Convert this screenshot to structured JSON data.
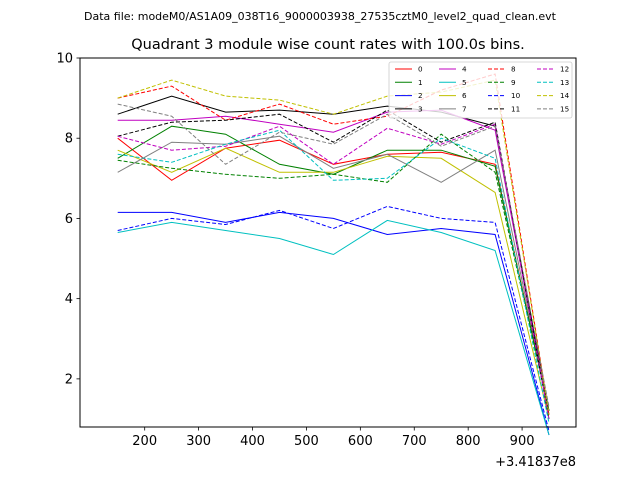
{
  "suptitle": "Data file: modeM0/AS1A09_038T16_9000003938_27535cztM0_level2_quad_clean.evt",
  "chart_data": {
    "type": "line",
    "title": "Quadrant 3 module wise count rates with 100.0s bins.",
    "xlabel": "",
    "ylabel": "",
    "x": [
      150,
      250,
      350,
      450,
      550,
      650,
      750,
      850,
      950
    ],
    "xlim": [
      80,
      1000
    ],
    "ylim": [
      0.8,
      10
    ],
    "xticks": [
      200,
      300,
      400,
      500,
      600,
      700,
      800,
      900
    ],
    "yticks": [
      2,
      4,
      6,
      8,
      10
    ],
    "x_offset_label": "+3.41837e8",
    "grid": false,
    "legend_position": "top-right",
    "series": [
      {
        "name": "0",
        "color": "#ff0000",
        "dash": "solid",
        "values": [
          8.0,
          6.95,
          7.75,
          7.95,
          7.35,
          7.6,
          7.65,
          7.35,
          1.2
        ]
      },
      {
        "name": "1",
        "color": "#008000",
        "dash": "solid",
        "values": [
          7.5,
          8.3,
          8.1,
          7.35,
          7.1,
          7.7,
          7.7,
          7.3,
          1.2
        ]
      },
      {
        "name": "2",
        "color": "#0000ff",
        "dash": "solid",
        "values": [
          6.15,
          6.15,
          5.9,
          6.15,
          6.0,
          5.6,
          5.75,
          5.6,
          0.6
        ]
      },
      {
        "name": "3",
        "color": "#000000",
        "dash": "solid",
        "values": [
          8.6,
          9.05,
          8.65,
          8.7,
          8.6,
          8.8,
          8.65,
          8.3,
          1.2
        ]
      },
      {
        "name": "4",
        "color": "#c000c0",
        "dash": "solid",
        "values": [
          8.45,
          8.45,
          8.55,
          8.35,
          8.15,
          8.65,
          8.7,
          8.2,
          1.1
        ]
      },
      {
        "name": "5",
        "color": "#00c0c0",
        "dash": "solid",
        "values": [
          5.65,
          5.9,
          5.7,
          5.5,
          5.1,
          5.95,
          5.65,
          5.2,
          0.6
        ]
      },
      {
        "name": "6",
        "color": "#c0c000",
        "dash": "solid",
        "values": [
          7.7,
          7.15,
          7.75,
          7.15,
          7.15,
          7.55,
          7.5,
          6.65,
          1.0
        ]
      },
      {
        "name": "7",
        "color": "#808080",
        "dash": "solid",
        "values": [
          7.15,
          7.9,
          7.85,
          8.05,
          7.25,
          7.6,
          6.9,
          7.7,
          1.2
        ]
      },
      {
        "name": "8",
        "color": "#ff0000",
        "dash": "dashed",
        "values": [
          9.0,
          9.3,
          8.45,
          8.85,
          8.35,
          8.55,
          9.2,
          9.6,
          1.1
        ]
      },
      {
        "name": "9",
        "color": "#008000",
        "dash": "dashed",
        "values": [
          7.45,
          7.25,
          7.1,
          7.0,
          7.1,
          6.9,
          8.1,
          7.15,
          1.2
        ]
      },
      {
        "name": "10",
        "color": "#0000ff",
        "dash": "dashed",
        "values": [
          5.7,
          6.0,
          5.85,
          6.2,
          5.75,
          6.3,
          6.0,
          5.9,
          0.7
        ]
      },
      {
        "name": "11",
        "color": "#000000",
        "dash": "dashed",
        "values": [
          8.05,
          8.4,
          8.45,
          8.6,
          7.9,
          8.7,
          7.9,
          8.4,
          1.0
        ]
      },
      {
        "name": "12",
        "color": "#c000c0",
        "dash": "dashed",
        "values": [
          8.05,
          7.7,
          7.8,
          8.3,
          7.35,
          8.25,
          7.85,
          8.35,
          1.0
        ]
      },
      {
        "name": "13",
        "color": "#00c0c0",
        "dash": "dashed",
        "values": [
          7.6,
          7.4,
          7.85,
          8.2,
          6.95,
          7.0,
          8.0,
          7.5,
          0.9
        ]
      },
      {
        "name": "14",
        "color": "#c0c000",
        "dash": "dashed",
        "values": [
          9.0,
          9.45,
          9.05,
          8.95,
          8.6,
          9.05,
          9.15,
          9.45,
          1.1
        ]
      },
      {
        "name": "15",
        "color": "#808080",
        "dash": "dashed",
        "values": [
          8.85,
          8.55,
          7.35,
          8.15,
          7.85,
          8.6,
          7.8,
          8.3,
          1.3
        ]
      }
    ]
  }
}
